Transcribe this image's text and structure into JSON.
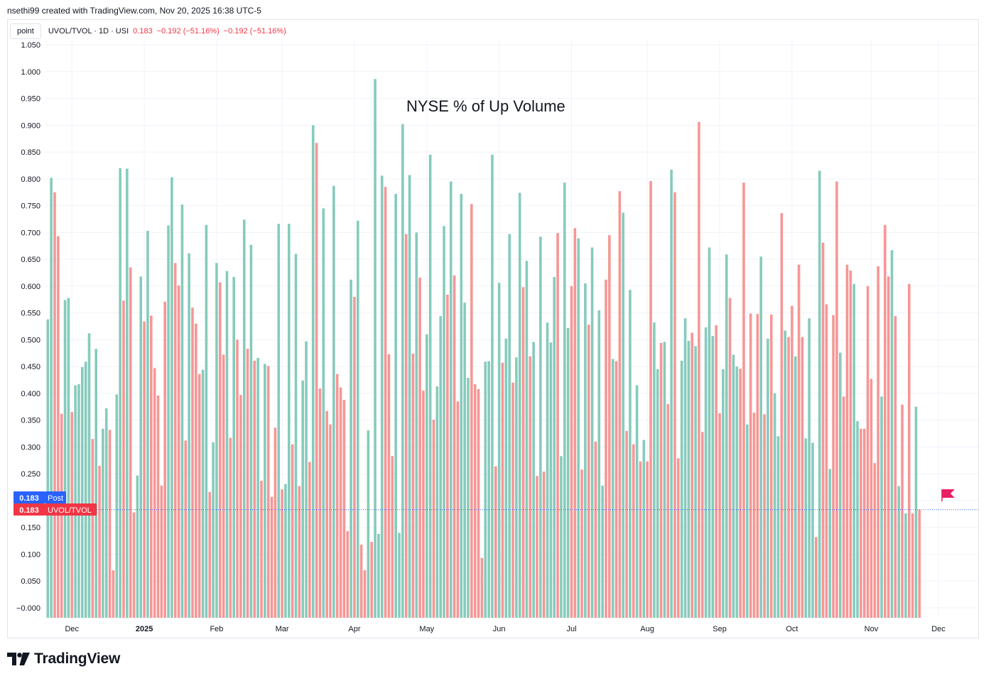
{
  "header": {
    "credit": "nsethi99 created with TradingView.com, Nov 20, 2025 16:38 UTC-5"
  },
  "legend": {
    "button": "point",
    "symbol": "UVOL/TVOL · 1D · USI",
    "last": "0.183",
    "change1": "−0.192 (−51.16%)",
    "change2": "−0.192 (−51.16%)"
  },
  "badges": {
    "post_value": "0.183",
    "post_label": "Post",
    "main_value": "0.183",
    "main_label": "UVOL/TVOL"
  },
  "footer": {
    "brand": "TradingView"
  },
  "colors": {
    "up": "#86cbbc",
    "down": "#f59796",
    "badge_blue": "#2962ff",
    "badge_red": "#f23645",
    "flag": "#e91e63"
  },
  "chart_data": {
    "type": "bar",
    "title": "NYSE % of Up Volume",
    "xlabel": "",
    "ylabel": "",
    "ylim": [
      -0.02,
      1.05
    ],
    "yticks": [
      1.05,
      1.0,
      0.95,
      0.9,
      0.85,
      0.8,
      0.75,
      0.7,
      0.65,
      0.6,
      0.55,
      0.5,
      0.45,
      0.4,
      0.35,
      0.3,
      0.25,
      0.2,
      0.15,
      0.1,
      0.05,
      0.0
    ],
    "ytick_labels": [
      "1.050",
      "1.000",
      "0.950",
      "0.900",
      "0.850",
      "0.800",
      "0.750",
      "0.700",
      "0.650",
      "0.600",
      "0.550",
      "0.500",
      "0.450",
      "0.400",
      "0.350",
      "0.300",
      "0.250",
      "0.200",
      "0.150",
      "0.100",
      "0.050",
      "−0.000"
    ],
    "xtick_labels": [
      {
        "label": "Dec",
        "bar": 7
      },
      {
        "label": "2025",
        "bar": 28
      },
      {
        "label": "Feb",
        "bar": 49
      },
      {
        "label": "Mar",
        "bar": 68
      },
      {
        "label": "Apr",
        "bar": 89
      },
      {
        "label": "May",
        "bar": 110
      },
      {
        "label": "Jun",
        "bar": 131
      },
      {
        "label": "Jul",
        "bar": 152
      },
      {
        "label": "Aug",
        "bar": 174
      },
      {
        "label": "Sep",
        "bar": 195
      },
      {
        "label": "Oct",
        "bar": 216
      },
      {
        "label": "Nov",
        "bar": 239
      },
      {
        "label": "Dec",
        "bar": 258.5
      }
    ],
    "values": [
      0.538,
      0.802,
      0.775,
      0.693,
      0.362,
      0.574,
      0.578,
      0.365,
      0.415,
      0.417,
      0.449,
      0.459,
      0.512,
      0.315,
      0.483,
      0.265,
      0.334,
      0.372,
      0.332,
      0.07,
      0.398,
      0.82,
      0.573,
      0.819,
      0.635,
      0.178,
      0.247,
      0.618,
      0.534,
      0.703,
      0.545,
      0.447,
      0.396,
      0.228,
      0.571,
      0.713,
      0.803,
      0.643,
      0.601,
      0.752,
      0.312,
      0.661,
      0.56,
      0.53,
      0.436,
      0.444,
      0.714,
      0.216,
      0.309,
      0.643,
      0.607,
      0.472,
      0.628,
      0.317,
      0.617,
      0.5,
      0.397,
      0.724,
      0.483,
      0.677,
      0.461,
      0.466,
      0.237,
      0.455,
      0.451,
      0.207,
      0.336,
      0.716,
      0.221,
      0.231,
      0.716,
      0.305,
      0.66,
      0.227,
      0.424,
      0.497,
      0.272,
      0.9,
      0.867,
      0.409,
      0.745,
      0.367,
      0.342,
      0.787,
      0.436,
      0.411,
      0.388,
      0.143,
      0.612,
      0.58,
      0.722,
      0.118,
      0.07,
      0.331,
      0.123,
      0.986,
      0.138,
      0.806,
      0.785,
      0.473,
      0.283,
      0.772,
      0.14,
      0.902,
      0.697,
      0.807,
      0.474,
      0.7,
      0.616,
      0.405,
      0.51,
      0.845,
      0.351,
      0.413,
      0.544,
      0.712,
      0.584,
      0.795,
      0.62,
      0.385,
      0.772,
      0.569,
      0.429,
      0.753,
      0.417,
      0.408,
      0.093,
      0.459,
      0.46,
      0.845,
      0.264,
      0.606,
      0.457,
      0.502,
      0.697,
      0.42,
      0.467,
      0.774,
      0.598,
      0.647,
      0.469,
      0.496,
      0.246,
      0.692,
      0.254,
      0.532,
      0.495,
      0.617,
      0.699,
      0.283,
      0.793,
      0.522,
      0.6,
      0.708,
      0.689,
      0.258,
      0.605,
      0.528,
      0.672,
      0.31,
      0.555,
      0.228,
      0.612,
      0.695,
      0.464,
      0.46,
      0.777,
      0.737,
      0.33,
      0.593,
      0.305,
      0.415,
      0.273,
      0.313,
      0.273,
      0.796,
      0.532,
      0.445,
      0.494,
      0.496,
      0.38,
      0.817,
      0.775,
      0.279,
      0.461,
      0.54,
      0.498,
      0.513,
      0.488,
      0.906,
      0.328,
      0.523,
      0.672,
      0.507,
      0.527,
      0.363,
      0.445,
      0.659,
      0.578,
      0.472,
      0.45,
      0.446,
      0.793,
      0.342,
      0.549,
      0.364,
      0.548,
      0.655,
      0.361,
      0.502,
      0.547,
      0.4,
      0.32,
      0.736,
      0.517,
      0.505,
      0.563,
      0.469,
      0.64,
      0.505,
      0.316,
      0.54,
      0.308,
      0.132,
      0.815,
      0.681,
      0.566,
      0.259,
      0.546,
      0.795,
      0.476,
      0.394,
      0.64,
      0.629,
      0.604,
      0.348,
      0.334,
      0.334,
      0.6,
      0.427,
      0.27,
      0.637,
      0.394,
      0.714,
      0.618,
      0.667,
      0.544,
      0.227,
      0.379,
      0.176,
      0.604,
      0.176,
      0.375,
      0.183
    ],
    "direction": [
      "up",
      "up",
      "down",
      "down",
      "down",
      "up",
      "up",
      "down",
      "up",
      "up",
      "up",
      "up",
      "up",
      "down",
      "up",
      "down",
      "up",
      "up",
      "down",
      "down",
      "up",
      "up",
      "down",
      "up",
      "down",
      "down",
      "up",
      "up",
      "down",
      "up",
      "down",
      "down",
      "down",
      "down",
      "down",
      "up",
      "up",
      "down",
      "down",
      "up",
      "down",
      "up",
      "down",
      "down",
      "down",
      "up",
      "up",
      "down",
      "up",
      "up",
      "down",
      "down",
      "up",
      "down",
      "up",
      "down",
      "down",
      "up",
      "down",
      "up",
      "down",
      "up",
      "down",
      "up",
      "down",
      "down",
      "down",
      "up",
      "down",
      "up",
      "up",
      "down",
      "up",
      "down",
      "up",
      "up",
      "down",
      "up",
      "down",
      "down",
      "up",
      "down",
      "down",
      "up",
      "down",
      "down",
      "down",
      "down",
      "up",
      "down",
      "up",
      "down",
      "down",
      "up",
      "down",
      "up",
      "up",
      "up",
      "down",
      "down",
      "down",
      "up",
      "up",
      "up",
      "down",
      "up",
      "down",
      "up",
      "down",
      "down",
      "up",
      "up",
      "down",
      "up",
      "up",
      "up",
      "down",
      "up",
      "down",
      "down",
      "up",
      "up",
      "up",
      "down",
      "down",
      "down",
      "down",
      "up",
      "up",
      "up",
      "down",
      "up",
      "down",
      "up",
      "up",
      "down",
      "up",
      "up",
      "down",
      "up",
      "down",
      "up",
      "down",
      "up",
      "down",
      "up",
      "up",
      "up",
      "down",
      "up",
      "up",
      "up",
      "down",
      "down",
      "up",
      "down",
      "up",
      "down",
      "up",
      "down",
      "up",
      "up",
      "down",
      "down",
      "up",
      "down",
      "down",
      "up",
      "down",
      "up",
      "down",
      "up",
      "down",
      "up",
      "down",
      "down",
      "up",
      "up",
      "down",
      "up",
      "down",
      "up",
      "down",
      "down",
      "up",
      "up",
      "up",
      "down",
      "up",
      "down",
      "down",
      "up",
      "up",
      "up",
      "down",
      "down",
      "up",
      "up",
      "down",
      "up",
      "up",
      "down",
      "down",
      "up",
      "down",
      "down",
      "down",
      "up",
      "down",
      "up",
      "down",
      "up",
      "up",
      "down",
      "up",
      "down",
      "down",
      "up",
      "down",
      "down",
      "up",
      "up",
      "up",
      "down",
      "up",
      "down",
      "down",
      "up",
      "down",
      "down",
      "up",
      "down",
      "down",
      "down",
      "up",
      "up",
      "down",
      "down",
      "down",
      "down",
      "down",
      "down",
      "up",
      "down",
      "down",
      "up",
      "down",
      "up",
      "down",
      "up",
      "down",
      "down",
      "up",
      "down",
      "up",
      "down",
      "down"
    ],
    "last_value": 0.183,
    "grid": true,
    "y_axis_position": "left",
    "legend_position": "top-left"
  }
}
